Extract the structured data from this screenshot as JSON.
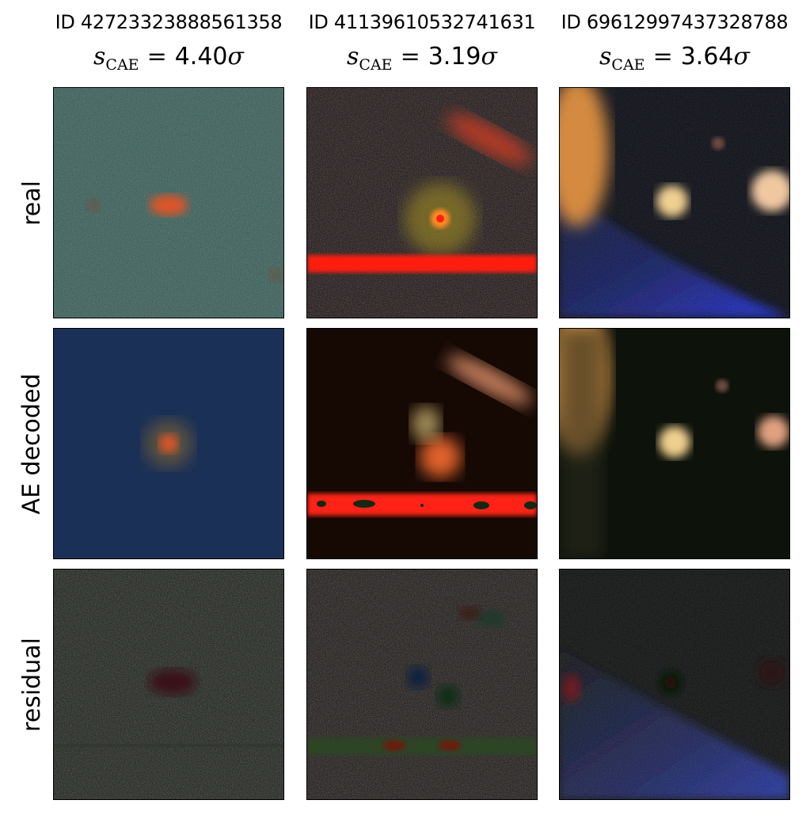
{
  "columns": [
    {
      "id_label": "ID 42723323888561358",
      "score_prefix": "s",
      "score_sub": "CAE",
      "score_value": "4.40",
      "score_unit": "σ"
    },
    {
      "id_label": "ID 41139610532741631",
      "score_prefix": "s",
      "score_sub": "CAE",
      "score_value": "3.19",
      "score_unit": "σ"
    },
    {
      "id_label": "ID 69612997437328788",
      "score_prefix": "s",
      "score_sub": "CAE",
      "score_value": "3.64",
      "score_unit": "σ"
    }
  ],
  "rows": [
    {
      "label": "real"
    },
    {
      "label": "AE decoded"
    },
    {
      "label": "residual"
    }
  ],
  "colors": {
    "teal_background": "#2f5a52",
    "navy_background": "#1c3158",
    "dark_background": "#100804",
    "red_streak": "#ff1a10",
    "galaxy_orange": "#e0552a",
    "star_cream": "#f2d9a0",
    "blue_glow": "#1a2bd0"
  }
}
